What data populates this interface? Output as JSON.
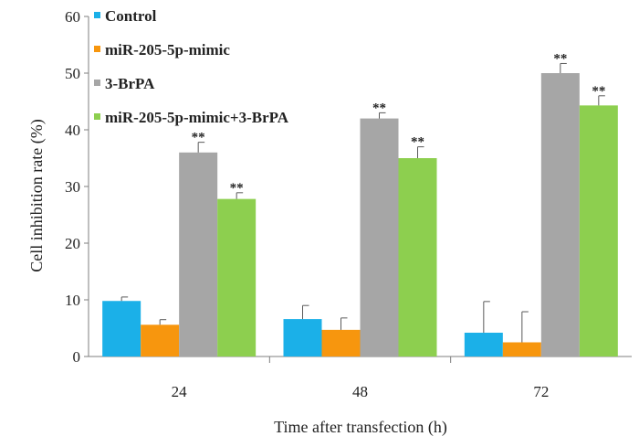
{
  "chart_data": {
    "type": "bar",
    "xlabel": "Time after transfection (h)",
    "ylabel": "Cell inhibition rate (%)",
    "ylim": [
      0,
      60
    ],
    "yticks": [
      "0",
      "10",
      "20",
      "30",
      "40",
      "50",
      "60"
    ],
    "categories": [
      "24",
      "48",
      "72"
    ],
    "legend_position": "top-left",
    "significance_marker": "**",
    "series": [
      {
        "name": "Control",
        "color": "#1BB0E8",
        "values": [
          9.8,
          6.6,
          4.2
        ],
        "errors": [
          0.7,
          2.4,
          5.5
        ],
        "significance": [
          false,
          false,
          false
        ]
      },
      {
        "name": "miR-205-5p-mimic",
        "color": "#F7960E",
        "values": [
          5.6,
          4.7,
          2.5
        ],
        "errors": [
          0.9,
          2.1,
          5.4
        ],
        "significance": [
          false,
          false,
          false
        ]
      },
      {
        "name": "3-BrPA",
        "color": "#A6A6A6",
        "values": [
          36.0,
          42.0,
          50.0
        ],
        "errors": [
          1.8,
          1.0,
          1.7
        ],
        "significance": [
          true,
          true,
          true
        ]
      },
      {
        "name": "miR-205-5p-mimic+3-BrPA",
        "color": "#8DCF4F",
        "values": [
          27.8,
          35.0,
          44.3
        ],
        "errors": [
          1.1,
          2.0,
          1.7
        ],
        "significance": [
          true,
          true,
          true
        ]
      }
    ]
  }
}
